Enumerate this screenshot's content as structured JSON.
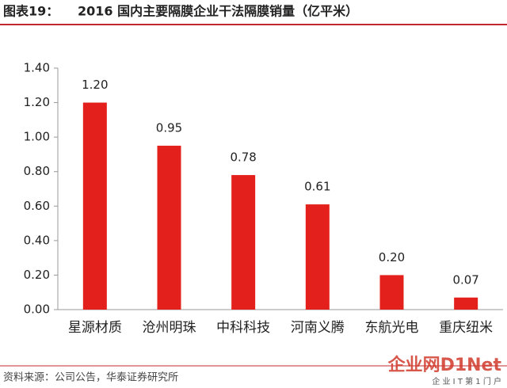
{
  "chart_data": {
    "type": "bar",
    "title_label": "图表19：",
    "title": "2016 国内主要隔膜企业干法隔膜销量（亿平米）",
    "categories": [
      "星源材质",
      "沧州明珠",
      "中科科技",
      "河南义腾",
      "东航光电",
      "重庆纽米"
    ],
    "values": [
      1.2,
      0.95,
      0.78,
      0.61,
      0.2,
      0.07
    ],
    "value_labels": [
      "1.20",
      "0.95",
      "0.78",
      "0.61",
      "0.20",
      "0.07"
    ],
    "color": "#e3201b",
    "ylim": [
      0,
      1.4
    ],
    "yticks": [
      {
        "value": 0,
        "label": "0.00"
      },
      {
        "value": 0.2,
        "label": "0.20"
      },
      {
        "value": 0.4,
        "label": "0.40"
      },
      {
        "value": 0.6,
        "label": "0.60"
      },
      {
        "value": 0.8,
        "label": "0.80"
      },
      {
        "value": 1.0,
        "label": "1.00"
      },
      {
        "value": 1.2,
        "label": "1.20"
      },
      {
        "value": 1.4,
        "label": "1.40"
      }
    ],
    "grid": false,
    "source": "资料来源：公司公告，华泰证券研究所",
    "watermark": "企业网D1Net",
    "watermark_sub": "企 业 I T 第 1 门 户"
  }
}
